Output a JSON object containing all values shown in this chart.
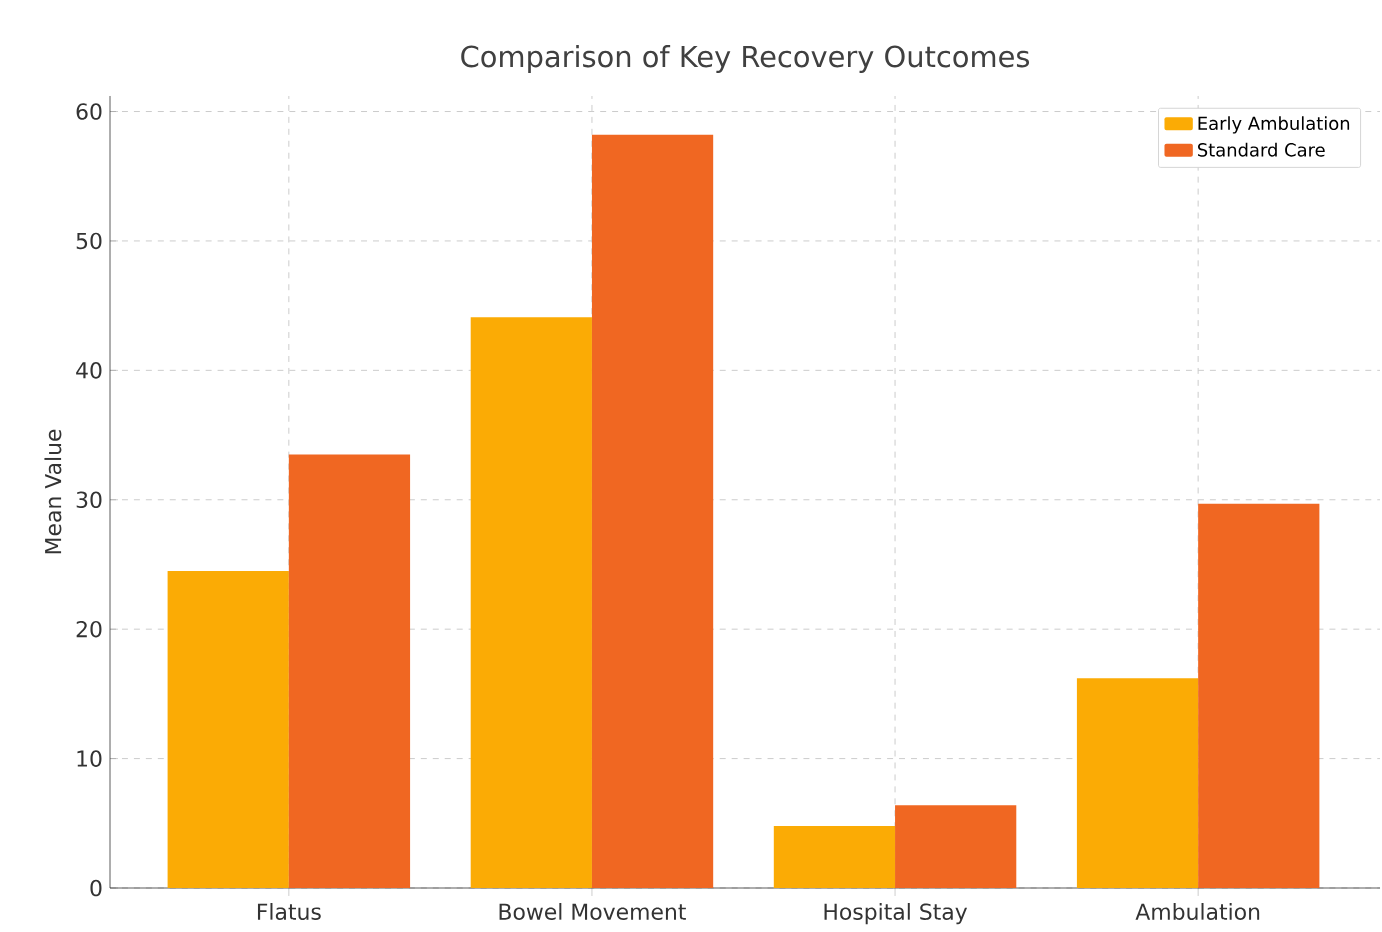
{
  "chart_data": {
    "type": "bar",
    "title": "Comparison of Key Recovery Outcomes",
    "ylabel": "Mean Value",
    "categories": [
      "Flatus",
      "Bowel Movement",
      "Hospital Stay",
      "Ambulation"
    ],
    "series": [
      {
        "name": "Early Ambulation",
        "color": "#fbab05",
        "values": [
          24.5,
          44.1,
          4.8,
          16.2
        ]
      },
      {
        "name": "Standard Care",
        "color": "#f06722",
        "values": [
          33.5,
          58.2,
          6.4,
          29.7
        ]
      }
    ],
    "ylim": [
      0,
      61.2
    ],
    "yticks": [
      0,
      10,
      20,
      30,
      40,
      50,
      60
    ],
    "grid": true,
    "legend": "top right"
  }
}
